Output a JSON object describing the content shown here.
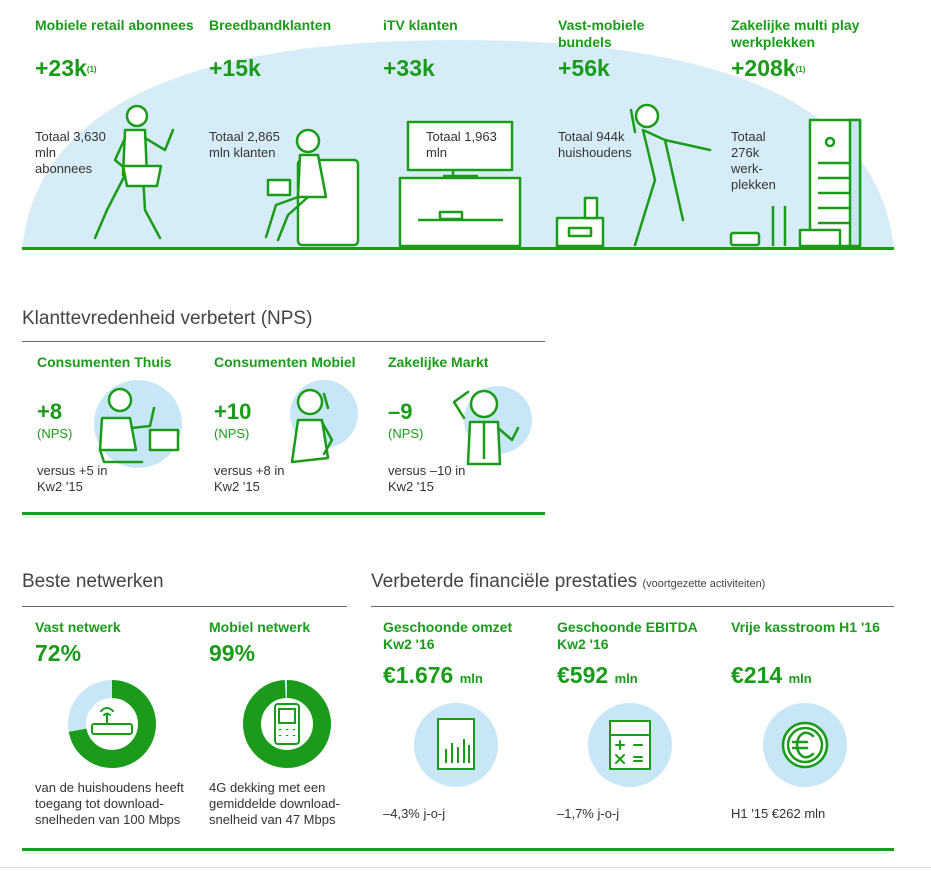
{
  "top": {
    "items": [
      {
        "label": "Mobiele retail abonnees",
        "value": "+23k",
        "footnote": "(1)",
        "desc": "Totaal 3,630 mln abonnees"
      },
      {
        "label": "Breedbandklanten",
        "value": "+15k",
        "footnote": "",
        "desc": "Totaal 2,865 mln klanten"
      },
      {
        "label": "iTV klanten",
        "value": "+33k",
        "footnote": "",
        "desc": "Totaal 1,963 mln"
      },
      {
        "label": "Vast-mobiele bundels",
        "value": "+56k",
        "footnote": "",
        "desc": "Totaal 944k huishoudens"
      },
      {
        "label": "Zakelijke multi play werkplekken",
        "value": "+208k",
        "footnote": "(1)",
        "desc": "Totaal 276k werk-plekken"
      }
    ]
  },
  "nps": {
    "title": "Klanttevredenheid verbetert (NPS)",
    "items": [
      {
        "label": "Consumenten Thuis",
        "value": "+8",
        "unit": "(NPS)",
        "desc": "versus +5 in Kw2 '15"
      },
      {
        "label": "Consumenten Mobiel",
        "value": "+10",
        "unit": "(NPS)",
        "desc": "versus +8 in Kw2 '15"
      },
      {
        "label": "Zakelijke Markt",
        "value": "–9",
        "unit": "(NPS)",
        "desc": "versus –10 in Kw2 '15"
      }
    ]
  },
  "network": {
    "title": "Beste netwerken",
    "items": [
      {
        "label": "Vast netwerk",
        "value": "72%",
        "fraction": 0.72,
        "desc": "van de huishoudens heeft toegang tot download-snelheden van 100 Mbps"
      },
      {
        "label": "Mobiel netwerk",
        "value": "99%",
        "fraction": 0.99,
        "desc": "4G dekking met een gemiddelde download-snelheid van 47 Mbps"
      }
    ]
  },
  "finance": {
    "title": "Verbeterde financiële prestaties",
    "subtitle": "(voortgezette activiteiten)",
    "items": [
      {
        "label": "Geschoonde omzet Kw2 '16",
        "value": "€1.676",
        "unit": "mln",
        "desc": "–4,3% j-o-j",
        "icon": "bar-chart-icon"
      },
      {
        "label": "Geschoonde EBITDA Kw2 '16",
        "value": "€592",
        "unit": "mln",
        "desc": "–1,7% j-o-j",
        "icon": "calculator-icon"
      },
      {
        "label": "Vrije kasstroom H1 '16",
        "value": "€214",
        "unit": "mln",
        "desc": "H1 '15 €262 mln",
        "icon": "euro-coin-icon"
      }
    ]
  },
  "colors": {
    "green": "#1a9b1a",
    "lightblue": "#d6edf8",
    "circleblue": "#c7e6f6"
  }
}
